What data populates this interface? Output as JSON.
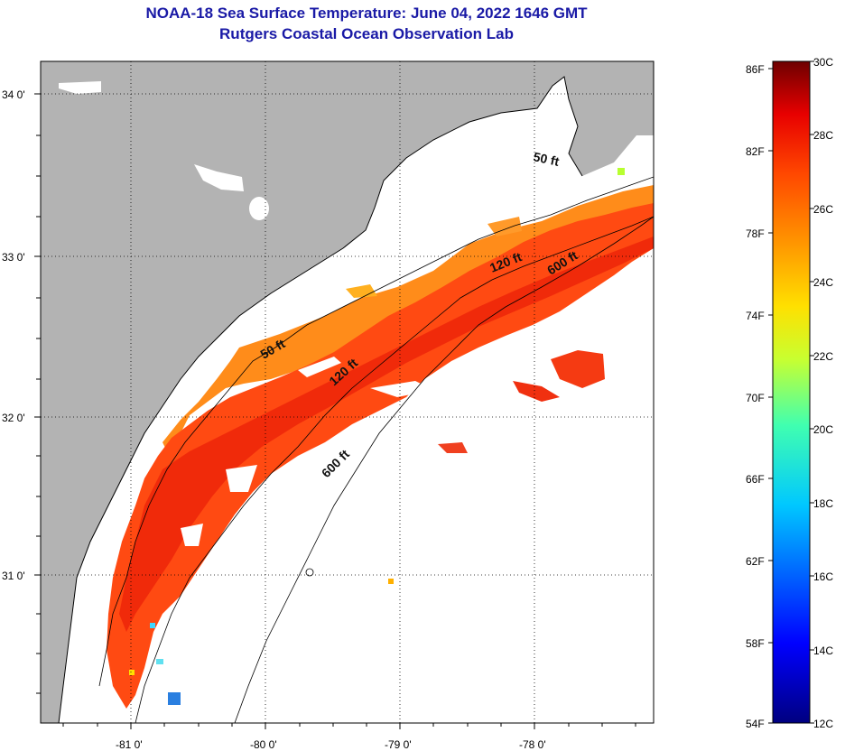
{
  "title": {
    "line1": "NOAA-18 Sea Surface Temperature:  June 04, 2022 1646 GMT",
    "line2": "Rutgers Coastal Ocean Observation Lab"
  },
  "map": {
    "latitude_labels": [
      "34 0'",
      "33 0'",
      "32 0'",
      "31 0'"
    ],
    "longitude_labels": [
      "-81 0'",
      "-80 0'",
      "-79 0'",
      "-78 0'"
    ],
    "contour_labels": [
      "50 ft",
      "50 ft",
      "120 ft",
      "120 ft",
      "600 ft",
      "600 ft"
    ],
    "land_color": "#b3b3b3",
    "cloud_color": "#ffffff"
  },
  "colorbar": {
    "fahrenheit_labels": [
      "86F",
      "82F",
      "78F",
      "74F",
      "70F",
      "66F",
      "62F",
      "58F",
      "54F"
    ],
    "celsius_labels": [
      "30C",
      "28C",
      "26C",
      "24C",
      "22C",
      "20C",
      "18C",
      "16C",
      "14C",
      "12C"
    ]
  }
}
